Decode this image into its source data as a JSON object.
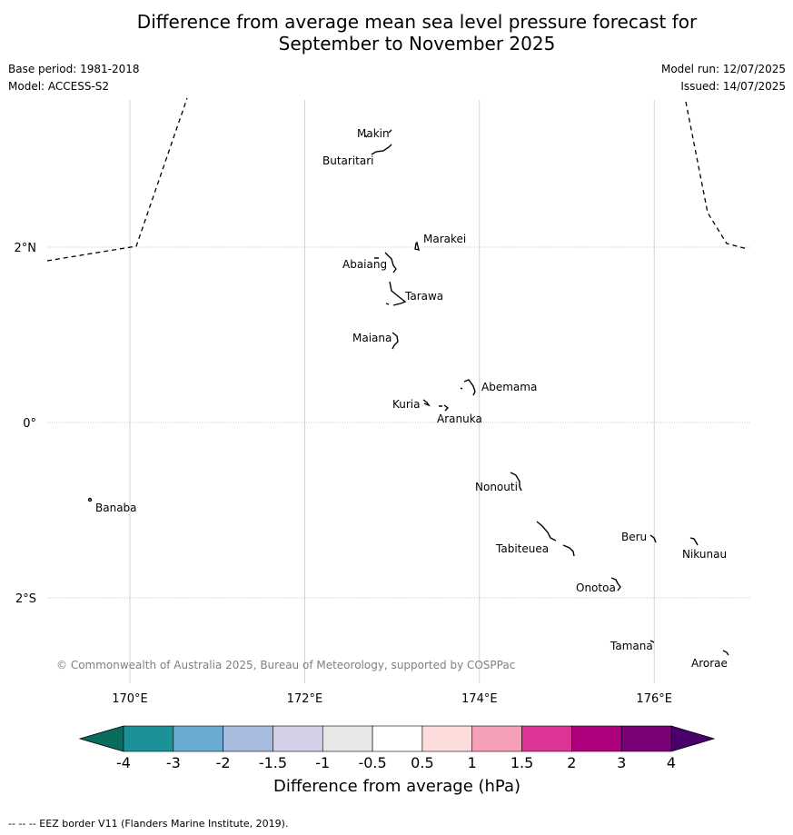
{
  "title": {
    "line1": "Difference from average mean sea level pressure forecast for",
    "line2": "September to November 2025"
  },
  "meta": {
    "base_period": "Base period: 1981-2018",
    "model": "Model: ACCESS-S2",
    "model_run": "Model run: 12/07/2025",
    "issued": "Issued: 14/07/2025"
  },
  "map": {
    "lon_range": [
      169,
      177
    ],
    "lat_range": [
      -3,
      3.4
    ],
    "lon_ticks": [
      {
        "value": 170,
        "label": "170°E"
      },
      {
        "value": 172,
        "label": "172°E"
      },
      {
        "value": 174,
        "label": "174°E"
      },
      {
        "value": 176,
        "label": "176°E"
      }
    ],
    "lat_ticks": [
      {
        "value": 2,
        "label": "2°N"
      },
      {
        "value": 0,
        "label": "0°"
      },
      {
        "value": -2,
        "label": "2°S"
      }
    ],
    "islands": [
      {
        "name": "Makin",
        "lon": 173.0,
        "lat": 3.33
      },
      {
        "name": "Butaritari",
        "lon": 172.9,
        "lat": 3.1
      },
      {
        "name": "Marakei",
        "lon": 173.3,
        "lat": 2.0
      },
      {
        "name": "Abaiang",
        "lon": 172.95,
        "lat": 1.85
      },
      {
        "name": "Tarawa",
        "lon": 173.0,
        "lat": 1.4
      },
      {
        "name": "Maiana",
        "lon": 173.0,
        "lat": 0.95
      },
      {
        "name": "Abemama",
        "lon": 173.85,
        "lat": 0.4
      },
      {
        "name": "Kuria",
        "lon": 173.4,
        "lat": 0.23
      },
      {
        "name": "Aranuka",
        "lon": 173.6,
        "lat": 0.17
      },
      {
        "name": "Banaba",
        "lon": 169.55,
        "lat": -0.87
      },
      {
        "name": "Nonouti",
        "lon": 174.4,
        "lat": -0.7
      },
      {
        "name": "Beru",
        "lon": 175.97,
        "lat": -1.33
      },
      {
        "name": "Nikunau",
        "lon": 176.45,
        "lat": -1.37
      },
      {
        "name": "Tabiteuea",
        "lon": 174.8,
        "lat": -1.35
      },
      {
        "name": "Onotoa",
        "lon": 175.58,
        "lat": -1.85
      },
      {
        "name": "Tamana",
        "lon": 175.98,
        "lat": -2.5
      },
      {
        "name": "Arorae",
        "lon": 176.8,
        "lat": -2.63
      }
    ],
    "copyright": "© Commonwealth of Australia 2025, Bureau of Meteorology, supported by COSPPac"
  },
  "colorbar": {
    "label": "Difference from average (hPa)",
    "ticks": [
      "-4",
      "-3",
      "-2",
      "-1.5",
      "-1",
      "-0.5",
      "0.5",
      "1",
      "1.5",
      "2",
      "3",
      "4"
    ],
    "colors": [
      "#1b9297",
      "#6aabd2",
      "#a7bbde",
      "#d1d0e6",
      "#e8e6e7",
      "#ffffff",
      "#fddcdc",
      "#f6a0b8",
      "#dd3497",
      "#ae017e",
      "#7a0177"
    ],
    "under_color": "#0b6b5c",
    "over_color": "#49006a"
  },
  "footer": "-- -- -- EEZ border V11 (Flanders Marine Institute, 2019)."
}
